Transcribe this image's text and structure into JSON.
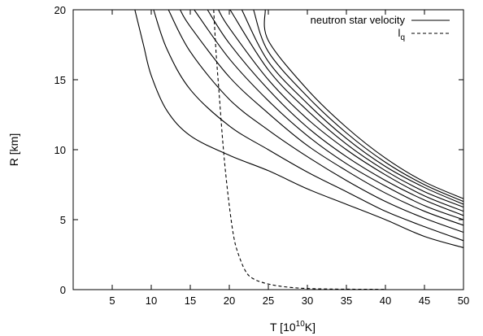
{
  "chart_data": {
    "type": "line",
    "xlabel_main": "T [10",
    "xlabel_sup": "10",
    "xlabel_end": "K]",
    "ylabel": "R [km]",
    "xlim": [
      0,
      50
    ],
    "ylim": [
      0,
      20
    ],
    "xticks": [
      5,
      10,
      15,
      20,
      25,
      30,
      35,
      40,
      45,
      50
    ],
    "yticks": [
      0,
      5,
      10,
      15,
      20
    ],
    "grid": false,
    "legend_position": "top-right",
    "series": [
      {
        "name": "neutron star velocity",
        "style": "solid",
        "legend": true,
        "points": [
          [
            7.9,
            20
          ],
          [
            9,
            17.5
          ],
          [
            10,
            15.3
          ],
          [
            12,
            12.8
          ],
          [
            15,
            11
          ],
          [
            20,
            9.6
          ],
          [
            25,
            8.5
          ],
          [
            30,
            7.2
          ],
          [
            35,
            6.1
          ],
          [
            40,
            5
          ],
          [
            45,
            3.8
          ],
          [
            50,
            3.0
          ]
        ]
      },
      {
        "style": "solid",
        "legend": false,
        "points": [
          [
            10.3,
            20
          ],
          [
            12,
            17.2
          ],
          [
            15,
            14.3
          ],
          [
            20,
            11.7
          ],
          [
            25,
            10
          ],
          [
            30,
            8.4
          ],
          [
            35,
            7
          ],
          [
            40,
            5.6
          ],
          [
            45,
            4.5
          ],
          [
            50,
            3.5
          ]
        ]
      },
      {
        "style": "solid",
        "legend": false,
        "points": [
          [
            12.2,
            20
          ],
          [
            15,
            17
          ],
          [
            20,
            13.6
          ],
          [
            25,
            11.4
          ],
          [
            30,
            9.5
          ],
          [
            35,
            7.8
          ],
          [
            40,
            6.3
          ],
          [
            45,
            5.1
          ],
          [
            50,
            4.1
          ]
        ]
      },
      {
        "style": "solid",
        "legend": false,
        "points": [
          [
            13.7,
            20
          ],
          [
            15,
            18.8
          ],
          [
            20,
            15.2
          ],
          [
            25,
            12.6
          ],
          [
            30,
            10.3
          ],
          [
            35,
            8.5
          ],
          [
            40,
            6.9
          ],
          [
            45,
            5.6
          ],
          [
            50,
            4.6
          ]
        ]
      },
      {
        "style": "solid",
        "legend": false,
        "points": [
          [
            15.5,
            20
          ],
          [
            20,
            16.5
          ],
          [
            25,
            13.5
          ],
          [
            30,
            11
          ],
          [
            35,
            9
          ],
          [
            40,
            7.4
          ],
          [
            45,
            6
          ],
          [
            50,
            5
          ]
        ]
      },
      {
        "style": "solid",
        "legend": false,
        "points": [
          [
            17.2,
            20
          ],
          [
            20,
            17.6
          ],
          [
            25,
            14.3
          ],
          [
            30,
            11.6
          ],
          [
            35,
            9.5
          ],
          [
            40,
            7.8
          ],
          [
            45,
            6.4
          ],
          [
            50,
            5.3
          ]
        ]
      },
      {
        "style": "solid",
        "legend": false,
        "points": [
          [
            18.6,
            20
          ],
          [
            20,
            18.7
          ],
          [
            25,
            15
          ],
          [
            30,
            12.2
          ],
          [
            35,
            10
          ],
          [
            40,
            8.2
          ],
          [
            45,
            6.7
          ],
          [
            50,
            5.6
          ]
        ]
      },
      {
        "style": "solid",
        "legend": false,
        "points": [
          [
            20.1,
            20
          ],
          [
            25,
            15.7
          ],
          [
            30,
            12.8
          ],
          [
            35,
            10.4
          ],
          [
            40,
            8.5
          ],
          [
            45,
            7
          ],
          [
            50,
            5.9
          ]
        ]
      },
      {
        "style": "solid",
        "legend": false,
        "points": [
          [
            21.6,
            20
          ],
          [
            25,
            16.3
          ],
          [
            30,
            13.3
          ],
          [
            35,
            10.8
          ],
          [
            40,
            8.8
          ],
          [
            45,
            7.3
          ],
          [
            50,
            6.1
          ]
        ]
      },
      {
        "style": "solid",
        "legend": false,
        "points": [
          [
            23.1,
            20
          ],
          [
            25,
            17
          ],
          [
            30,
            13.8
          ],
          [
            35,
            11.2
          ],
          [
            40,
            9.1
          ],
          [
            45,
            7.5
          ],
          [
            50,
            6.3
          ]
        ]
      },
      {
        "style": "solid",
        "legend": false,
        "points": [
          [
            24.6,
            20
          ],
          [
            25,
            17.8
          ],
          [
            30,
            14.3
          ],
          [
            35,
            11.6
          ],
          [
            40,
            9.4
          ],
          [
            45,
            7.7
          ],
          [
            50,
            6.5
          ]
        ]
      },
      {
        "name": "l",
        "name_sub": "q",
        "style": "dashed",
        "legend": true,
        "points": [
          [
            18,
            20
          ],
          [
            18.3,
            17
          ],
          [
            18.7,
            14
          ],
          [
            19.1,
            11
          ],
          [
            19.5,
            8.5
          ],
          [
            20,
            6
          ],
          [
            20.5,
            4
          ],
          [
            21,
            2.8
          ],
          [
            22,
            1.4
          ],
          [
            23,
            0.8
          ],
          [
            25,
            0.4
          ],
          [
            28,
            0.15
          ],
          [
            32,
            0.05
          ],
          [
            40,
            0.02
          ]
        ]
      }
    ]
  }
}
